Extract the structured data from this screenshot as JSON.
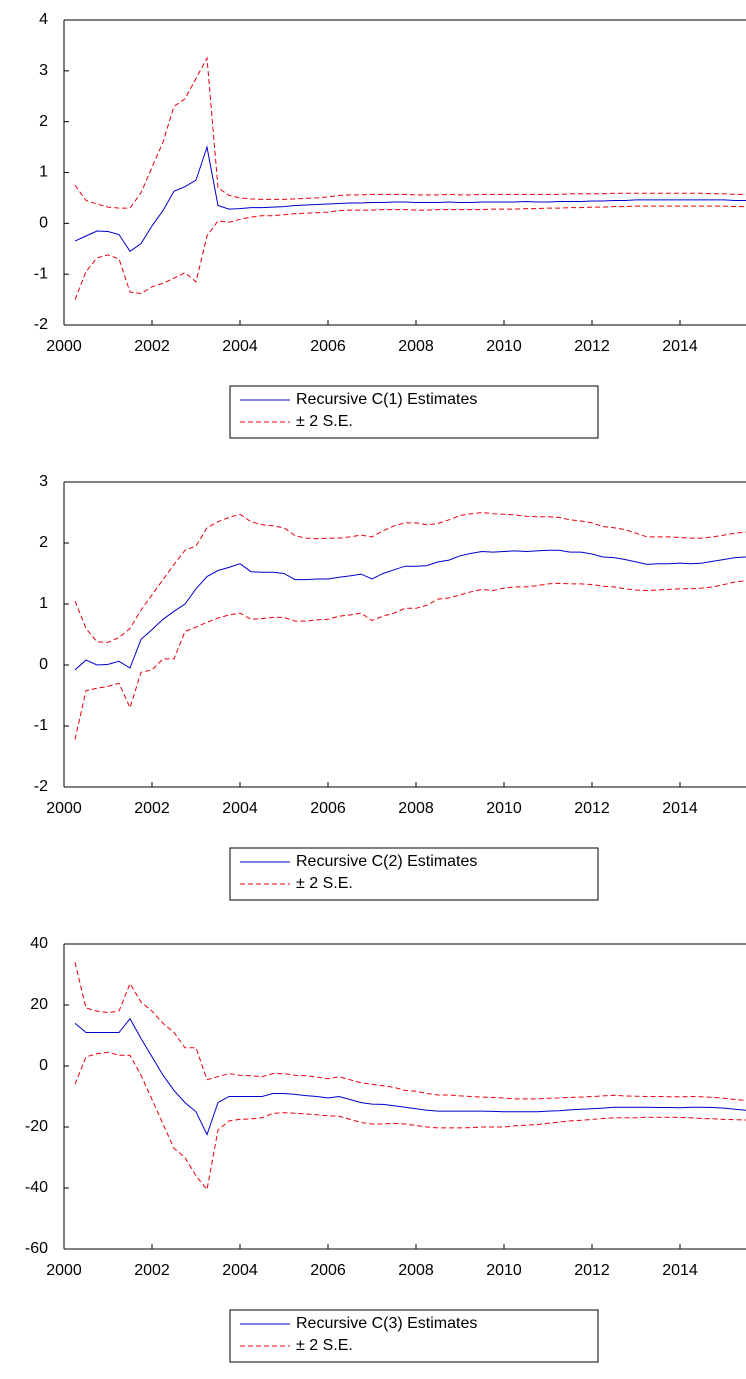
{
  "chart_data": [
    {
      "type": "line",
      "x": [
        2000.25,
        2000.5,
        2000.75,
        2001,
        2001.25,
        2001.5,
        2001.75,
        2002,
        2002.25,
        2002.5,
        2002.75,
        2003,
        2003.25,
        2003.5,
        2003.75,
        2004,
        2004.25,
        2004.5,
        2004.75,
        2005,
        2005.25,
        2005.5,
        2005.75,
        2006,
        2006.25,
        2006.5,
        2006.75,
        2007,
        2007.25,
        2007.5,
        2007.75,
        2008,
        2008.25,
        2008.5,
        2008.75,
        2009,
        2009.25,
        2009.5,
        2009.75,
        2010,
        2010.25,
        2010.5,
        2010.75,
        2011,
        2011.25,
        2011.5,
        2011.75,
        2012,
        2012.25,
        2012.5,
        2012.75,
        2013,
        2013.25,
        2013.5,
        2013.75,
        2014,
        2014.25,
        2014.5,
        2014.75,
        2015,
        2015.25,
        2015.5
      ],
      "xlim": [
        2000,
        2015.5
      ],
      "xticks": [
        2000,
        2002,
        2004,
        2006,
        2008,
        2010,
        2012,
        2014
      ],
      "ylim": [
        -2,
        4
      ],
      "yticks": [
        -2,
        -1,
        0,
        1,
        2,
        3,
        4
      ],
      "series": [
        {
          "name": "Recursive C(1) Estimates",
          "color": "#0000cc",
          "line_style": "solid",
          "values": [
            -0.35,
            -0.25,
            -0.15,
            -0.16,
            -0.22,
            -0.55,
            -0.4,
            -0.05,
            0.25,
            0.63,
            0.72,
            0.85,
            1.5,
            0.35,
            0.28,
            0.29,
            0.31,
            0.31,
            0.32,
            0.33,
            0.35,
            0.36,
            0.37,
            0.38,
            0.39,
            0.4,
            0.4,
            0.41,
            0.41,
            0.42,
            0.42,
            0.41,
            0.41,
            0.41,
            0.42,
            0.41,
            0.41,
            0.42,
            0.42,
            0.42,
            0.42,
            0.43,
            0.42,
            0.42,
            0.43,
            0.43,
            0.43,
            0.44,
            0.44,
            0.45,
            0.45,
            0.46,
            0.46,
            0.46,
            0.46,
            0.46,
            0.46,
            0.46,
            0.46,
            0.46,
            0.45,
            0.45
          ]
        },
        {
          "name": "± 2 S.E.",
          "color": "#e8000b",
          "line_style": "dashed",
          "upper": [
            0.75,
            0.45,
            0.38,
            0.32,
            0.3,
            0.3,
            0.6,
            1.1,
            1.6,
            2.3,
            2.45,
            2.85,
            3.25,
            0.7,
            0.55,
            0.5,
            0.48,
            0.47,
            0.47,
            0.47,
            0.48,
            0.49,
            0.5,
            0.52,
            0.55,
            0.56,
            0.56,
            0.57,
            0.57,
            0.57,
            0.57,
            0.56,
            0.56,
            0.56,
            0.57,
            0.56,
            0.56,
            0.57,
            0.57,
            0.57,
            0.57,
            0.57,
            0.57,
            0.57,
            0.57,
            0.58,
            0.58,
            0.58,
            0.58,
            0.59,
            0.59,
            0.59,
            0.59,
            0.59,
            0.59,
            0.59,
            0.59,
            0.59,
            0.58,
            0.58,
            0.57,
            0.57
          ],
          "lower": [
            -1.5,
            -0.95,
            -0.68,
            -0.62,
            -0.7,
            -1.35,
            -1.38,
            -1.25,
            -1.18,
            -1.08,
            -0.97,
            -1.15,
            -0.25,
            0.05,
            0.02,
            0.08,
            0.12,
            0.15,
            0.15,
            0.17,
            0.19,
            0.2,
            0.21,
            0.22,
            0.25,
            0.26,
            0.26,
            0.26,
            0.27,
            0.27,
            0.27,
            0.26,
            0.26,
            0.27,
            0.27,
            0.27,
            0.27,
            0.27,
            0.28,
            0.28,
            0.28,
            0.29,
            0.29,
            0.3,
            0.3,
            0.31,
            0.31,
            0.32,
            0.32,
            0.33,
            0.33,
            0.34,
            0.34,
            0.34,
            0.34,
            0.34,
            0.34,
            0.34,
            0.34,
            0.34,
            0.33,
            0.33
          ]
        }
      ]
    },
    {
      "type": "line",
      "x": [
        2000.25,
        2000.5,
        2000.75,
        2001,
        2001.25,
        2001.5,
        2001.75,
        2002,
        2002.25,
        2002.5,
        2002.75,
        2003,
        2003.25,
        2003.5,
        2003.75,
        2004,
        2004.25,
        2004.5,
        2004.75,
        2005,
        2005.25,
        2005.5,
        2005.75,
        2006,
        2006.25,
        2006.5,
        2006.75,
        2007,
        2007.25,
        2007.5,
        2007.75,
        2008,
        2008.25,
        2008.5,
        2008.75,
        2009,
        2009.25,
        2009.5,
        2009.75,
        2010,
        2010.25,
        2010.5,
        2010.75,
        2011,
        2011.25,
        2011.5,
        2011.75,
        2012,
        2012.25,
        2012.5,
        2012.75,
        2013,
        2013.25,
        2013.5,
        2013.75,
        2014,
        2014.25,
        2014.5,
        2014.75,
        2015,
        2015.25,
        2015.5
      ],
      "xlim": [
        2000,
        2015.5
      ],
      "xticks": [
        2000,
        2002,
        2004,
        2006,
        2008,
        2010,
        2012,
        2014
      ],
      "ylim": [
        -2,
        3
      ],
      "yticks": [
        -2,
        -1,
        0,
        1,
        2,
        3
      ],
      "series": [
        {
          "name": "Recursive C(2) Estimates",
          "color": "#0000cc",
          "line_style": "solid",
          "values": [
            -0.08,
            0.08,
            0.0,
            0.01,
            0.06,
            -0.05,
            0.42,
            0.58,
            0.75,
            0.88,
            1.0,
            1.25,
            1.45,
            1.55,
            1.6,
            1.66,
            1.53,
            1.52,
            1.52,
            1.5,
            1.4,
            1.4,
            1.41,
            1.41,
            1.44,
            1.46,
            1.49,
            1.41,
            1.5,
            1.56,
            1.62,
            1.62,
            1.63,
            1.69,
            1.72,
            1.79,
            1.83,
            1.86,
            1.85,
            1.86,
            1.87,
            1.86,
            1.87,
            1.88,
            1.88,
            1.85,
            1.85,
            1.82,
            1.77,
            1.76,
            1.73,
            1.69,
            1.65,
            1.66,
            1.66,
            1.67,
            1.66,
            1.67,
            1.7,
            1.73,
            1.76,
            1.77
          ]
        },
        {
          "name": "± 2 S.E.",
          "color": "#e8000b",
          "line_style": "dashed",
          "upper": [
            1.05,
            0.6,
            0.38,
            0.37,
            0.45,
            0.6,
            0.9,
            1.15,
            1.4,
            1.65,
            1.88,
            1.95,
            2.25,
            2.35,
            2.42,
            2.47,
            2.35,
            2.3,
            2.28,
            2.25,
            2.12,
            2.08,
            2.07,
            2.08,
            2.08,
            2.1,
            2.13,
            2.1,
            2.2,
            2.28,
            2.33,
            2.33,
            2.3,
            2.32,
            2.38,
            2.45,
            2.48,
            2.5,
            2.48,
            2.47,
            2.46,
            2.44,
            2.43,
            2.43,
            2.42,
            2.38,
            2.36,
            2.33,
            2.27,
            2.25,
            2.22,
            2.16,
            2.1,
            2.1,
            2.1,
            2.09,
            2.08,
            2.08,
            2.1,
            2.13,
            2.16,
            2.18
          ],
          "lower": [
            -1.22,
            -0.42,
            -0.38,
            -0.35,
            -0.3,
            -0.7,
            -0.12,
            -0.08,
            0.1,
            0.1,
            0.55,
            0.62,
            0.7,
            0.77,
            0.82,
            0.85,
            0.75,
            0.76,
            0.78,
            0.78,
            0.72,
            0.72,
            0.74,
            0.75,
            0.8,
            0.82,
            0.85,
            0.73,
            0.8,
            0.85,
            0.93,
            0.93,
            0.98,
            1.08,
            1.1,
            1.15,
            1.2,
            1.24,
            1.22,
            1.26,
            1.28,
            1.28,
            1.3,
            1.33,
            1.34,
            1.33,
            1.33,
            1.32,
            1.29,
            1.28,
            1.25,
            1.23,
            1.22,
            1.23,
            1.24,
            1.25,
            1.25,
            1.26,
            1.28,
            1.32,
            1.36,
            1.38
          ]
        }
      ]
    },
    {
      "type": "line",
      "x": [
        2000.25,
        2000.5,
        2000.75,
        2001,
        2001.25,
        2001.5,
        2001.75,
        2002,
        2002.25,
        2002.5,
        2002.75,
        2003,
        2003.25,
        2003.5,
        2003.75,
        2004,
        2004.25,
        2004.5,
        2004.75,
        2005,
        2005.25,
        2005.5,
        2005.75,
        2006,
        2006.25,
        2006.5,
        2006.75,
        2007,
        2007.25,
        2007.5,
        2007.75,
        2008,
        2008.25,
        2008.5,
        2008.75,
        2009,
        2009.25,
        2009.5,
        2009.75,
        2010,
        2010.25,
        2010.5,
        2010.75,
        2011,
        2011.25,
        2011.5,
        2011.75,
        2012,
        2012.25,
        2012.5,
        2012.75,
        2013,
        2013.25,
        2013.5,
        2013.75,
        2014,
        2014.25,
        2014.5,
        2014.75,
        2015,
        2015.25,
        2015.5
      ],
      "xlim": [
        2000,
        2015.5
      ],
      "xticks": [
        2000,
        2002,
        2004,
        2006,
        2008,
        2010,
        2012,
        2014
      ],
      "ylim": [
        -60,
        40
      ],
      "yticks": [
        -60,
        -40,
        -20,
        0,
        20,
        40
      ],
      "series": [
        {
          "name": "Recursive C(3) Estimates",
          "color": "#0000cc",
          "line_style": "solid",
          "values": [
            14,
            11,
            11,
            11,
            11,
            15.5,
            9,
            3,
            -3,
            -8,
            -12,
            -15,
            -22.5,
            -12,
            -10,
            -10,
            -10,
            -10,
            -9,
            -9,
            -9.3,
            -9.7,
            -10,
            -10.5,
            -10,
            -11,
            -12,
            -12.5,
            -12.6,
            -13,
            -13.5,
            -14,
            -14.5,
            -14.8,
            -14.8,
            -14.8,
            -14.8,
            -14.8,
            -14.9,
            -15,
            -15,
            -15,
            -15,
            -14.8,
            -14.7,
            -14.4,
            -14.2,
            -14,
            -13.8,
            -13.5,
            -13.5,
            -13.5,
            -13.5,
            -13.6,
            -13.6,
            -13.7,
            -13.5,
            -13.5,
            -13.6,
            -13.8,
            -14.2,
            -14.5
          ]
        },
        {
          "name": "± 2 S.E.",
          "color": "#e8000b",
          "line_style": "dashed",
          "upper": [
            34,
            19,
            18,
            17.5,
            18,
            27,
            21,
            18,
            14,
            11,
            6,
            6,
            -4.5,
            -3.5,
            -2.5,
            -3,
            -3.2,
            -3.5,
            -2.5,
            -2.5,
            -3,
            -3.2,
            -3.6,
            -4.2,
            -3.5,
            -4.5,
            -5.5,
            -6,
            -6.5,
            -7,
            -8,
            -8.3,
            -9,
            -9.5,
            -9.5,
            -9.8,
            -10,
            -10.2,
            -10.3,
            -10.5,
            -10.8,
            -10.8,
            -10.8,
            -10.6,
            -10.5,
            -10.3,
            -10.2,
            -10,
            -9.8,
            -9.6,
            -9.8,
            -9.9,
            -10,
            -10,
            -10.1,
            -10.1,
            -10,
            -10.1,
            -10.3,
            -10.6,
            -11,
            -11.3
          ],
          "lower": [
            -6,
            3,
            4,
            4.5,
            3.5,
            3.5,
            -3,
            -11,
            -19,
            -27,
            -30,
            -36,
            -40.5,
            -21,
            -18,
            -17.5,
            -17.3,
            -17,
            -15.5,
            -15.3,
            -15.5,
            -15.7,
            -16,
            -16.3,
            -16.5,
            -17.5,
            -18.5,
            -19,
            -19,
            -18.8,
            -19,
            -19.5,
            -20,
            -20.3,
            -20.3,
            -20.3,
            -20.2,
            -20,
            -20,
            -20,
            -19.6,
            -19.4,
            -19.2,
            -18.8,
            -18.4,
            -18,
            -17.8,
            -17.5,
            -17.2,
            -17,
            -17,
            -17,
            -16.8,
            -16.8,
            -16.8,
            -16.9,
            -17,
            -17.2,
            -17.3,
            -17.5,
            -17.6,
            -17.7
          ]
        }
      ]
    }
  ]
}
